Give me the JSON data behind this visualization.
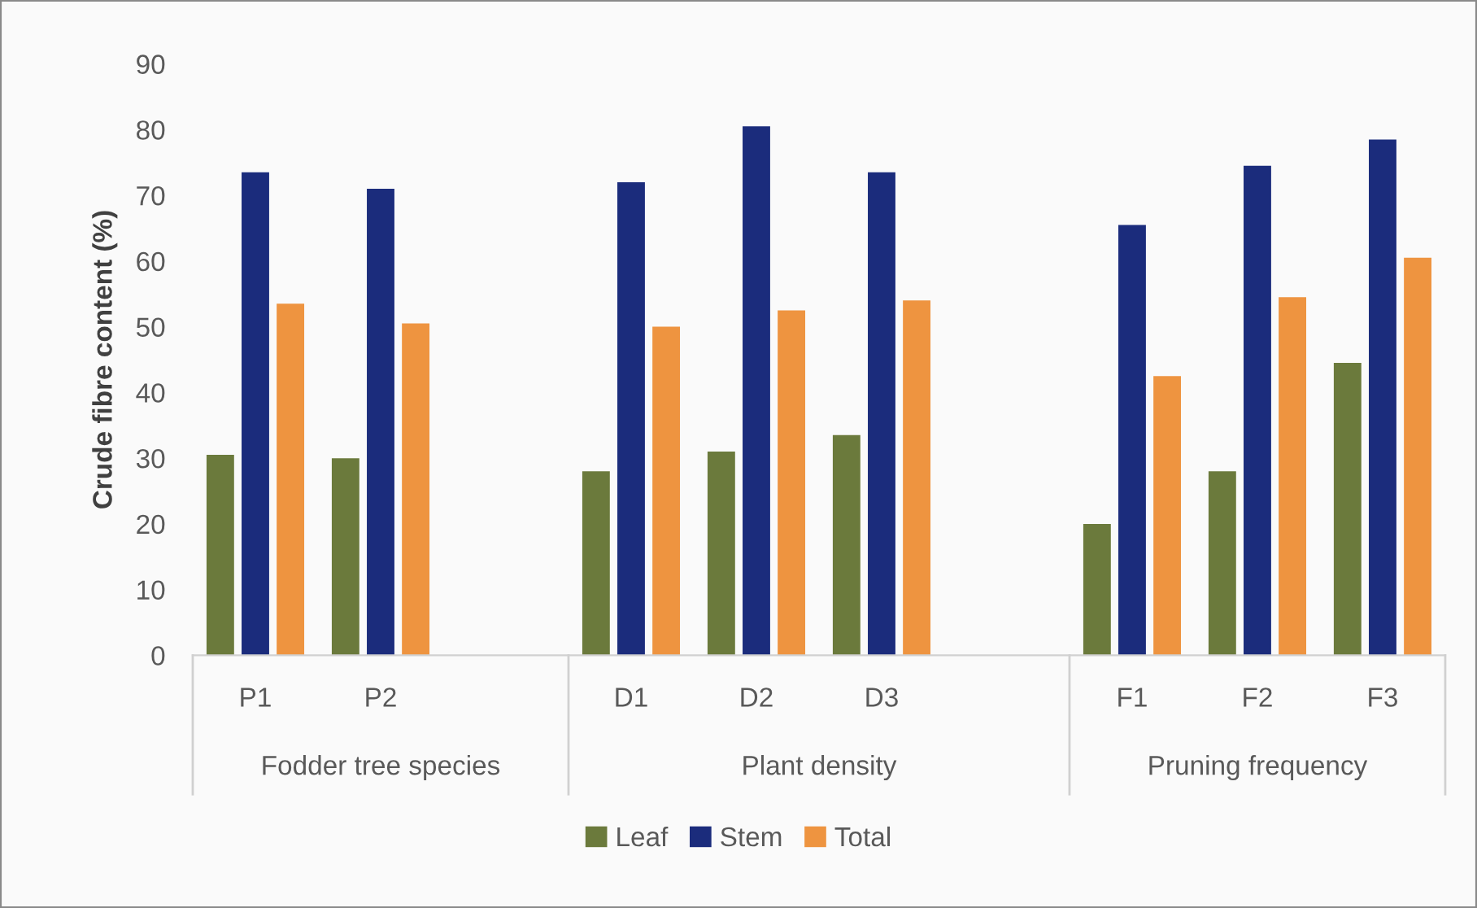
{
  "chart_data": {
    "type": "bar",
    "ylabel": "Crude fibre content (%)",
    "categories": [
      "P1",
      "P2",
      null,
      "D1",
      "D2",
      "D3",
      null,
      "F1",
      "F2",
      "F3"
    ],
    "series": [
      {
        "name": "Leaf",
        "color": "#6b7a3c",
        "values": [
          30.5,
          30,
          null,
          28,
          31,
          33.5,
          null,
          20,
          28,
          44.5
        ]
      },
      {
        "name": "Stem",
        "color": "#1b2c7c",
        "values": [
          73.5,
          71,
          null,
          72,
          80.5,
          73.5,
          null,
          65.5,
          74.5,
          78.5
        ]
      },
      {
        "name": "Total",
        "color": "#ee9440",
        "values": [
          53.5,
          50.5,
          null,
          50,
          52.5,
          54,
          null,
          42.5,
          54.5,
          60.5
        ]
      }
    ],
    "ylim": [
      0,
      90
    ],
    "yticks": [
      0,
      10,
      20,
      30,
      40,
      50,
      60,
      70,
      80,
      90
    ],
    "legend": "bottom",
    "annotations": [
      "Fodder tree species",
      "Plant density",
      "Pruning frequency"
    ]
  }
}
